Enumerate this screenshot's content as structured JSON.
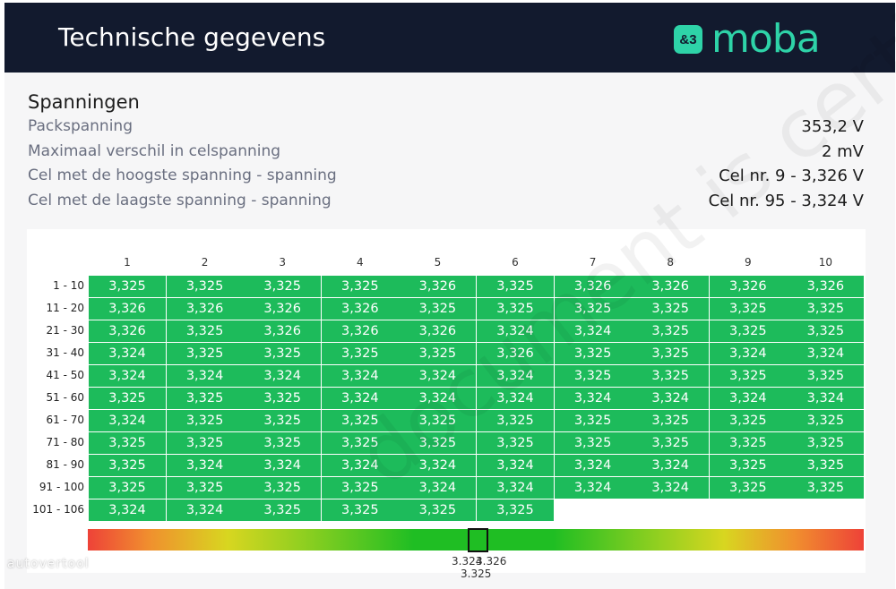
{
  "header": {
    "title": "Technische gegevens",
    "logo_mark": "&3",
    "logo_text": "moba"
  },
  "voltages": {
    "title": "Spanningen",
    "rows": [
      {
        "label": "Packspanning",
        "value": "353,2 V"
      },
      {
        "label": "Maximaal verschil in celspanning",
        "value": "2 mV"
      },
      {
        "label": "Cel met de hoogste spanning - spanning",
        "value": "Cel nr. 9 - 3,326 V"
      },
      {
        "label": "Cel met de laagste spanning - spanning",
        "value": "Cel nr. 95 - 3,324 V"
      }
    ]
  },
  "cell_grid": {
    "columns": [
      "1",
      "2",
      "3",
      "4",
      "5",
      "6",
      "7",
      "8",
      "9",
      "10"
    ],
    "rows": [
      {
        "label": "1 - 10",
        "values": [
          "3,325",
          "3,325",
          "3,325",
          "3,325",
          "3,326",
          "3,325",
          "3,326",
          "3,326",
          "3,326",
          "3,326"
        ]
      },
      {
        "label": "11 - 20",
        "values": [
          "3,326",
          "3,326",
          "3,326",
          "3,326",
          "3,325",
          "3,325",
          "3,325",
          "3,325",
          "3,325",
          "3,325"
        ]
      },
      {
        "label": "21 - 30",
        "values": [
          "3,326",
          "3,325",
          "3,326",
          "3,326",
          "3,326",
          "3,324",
          "3,324",
          "3,325",
          "3,325",
          "3,325"
        ]
      },
      {
        "label": "31 - 40",
        "values": [
          "3,324",
          "3,325",
          "3,325",
          "3,325",
          "3,325",
          "3,326",
          "3,325",
          "3,325",
          "3,324",
          "3,324"
        ]
      },
      {
        "label": "41 - 50",
        "values": [
          "3,324",
          "3,324",
          "3,324",
          "3,324",
          "3,324",
          "3,324",
          "3,325",
          "3,325",
          "3,325",
          "3,325"
        ]
      },
      {
        "label": "51 - 60",
        "values": [
          "3,325",
          "3,325",
          "3,325",
          "3,324",
          "3,324",
          "3,324",
          "3,324",
          "3,324",
          "3,324",
          "3,324"
        ]
      },
      {
        "label": "61 - 70",
        "values": [
          "3,324",
          "3,325",
          "3,325",
          "3,325",
          "3,325",
          "3,325",
          "3,325",
          "3,325",
          "3,325",
          "3,325"
        ]
      },
      {
        "label": "71 - 80",
        "values": [
          "3,325",
          "3,325",
          "3,325",
          "3,325",
          "3,325",
          "3,325",
          "3,325",
          "3,325",
          "3,325",
          "3,325"
        ]
      },
      {
        "label": "81 - 90",
        "values": [
          "3,325",
          "3,324",
          "3,324",
          "3,324",
          "3,324",
          "3,324",
          "3,324",
          "3,324",
          "3,325",
          "3,325"
        ]
      },
      {
        "label": "91 - 100",
        "values": [
          "3,325",
          "3,325",
          "3,325",
          "3,325",
          "3,324",
          "3,324",
          "3,324",
          "3,324",
          "3,325",
          "3,325"
        ]
      },
      {
        "label": "101 - 106",
        "values": [
          "3,324",
          "3,324",
          "3,325",
          "3,325",
          "3,325",
          "3,325"
        ]
      }
    ]
  },
  "scale": {
    "min_label": "3.324",
    "max_label": "3.326",
    "avg_label": "3.325",
    "colors": [
      "#ee4238",
      "#f0902e",
      "#d8d620",
      "#1fbe23"
    ],
    "cell_color": "#1dbb5b"
  },
  "watermarks": {
    "corner": "autovertool",
    "diagonal": "document is certificaat"
  },
  "colors": {
    "header_bg": "#121a2e",
    "brand": "#2ed3a8"
  }
}
